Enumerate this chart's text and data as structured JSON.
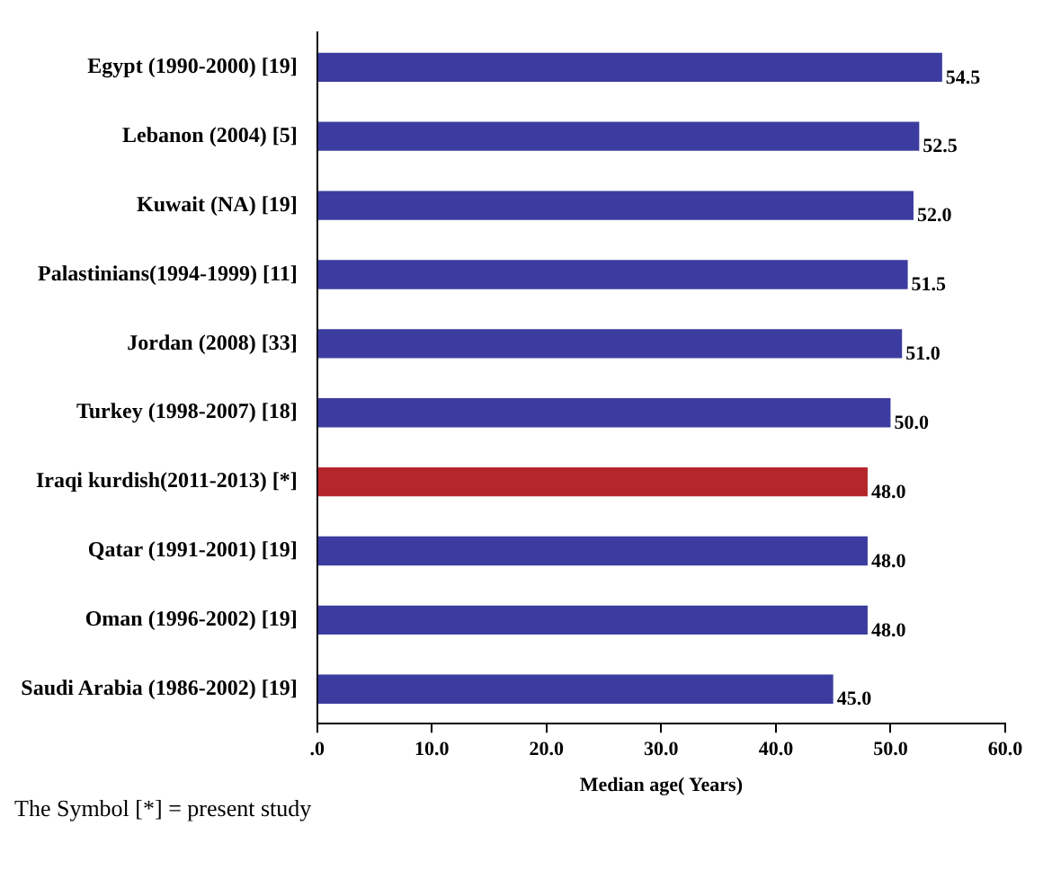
{
  "chart_data": {
    "type": "bar",
    "orientation": "horizontal",
    "xlabel": "Median age( Years)",
    "categories": [
      "Egypt (1990-2000) [19]",
      "Lebanon (2004) [5]",
      "Kuwait (NA) [19]",
      "Palastinians(1994-1999) [11]",
      "Jordan (2008) [33]",
      "Turkey (1998-2007) [18]",
      "Iraqi kurdish(2011-2013) [*]",
      "Qatar (1991-2001) [19]",
      "Oman (1996-2002) [19]",
      "Saudi Arabia (1986-2002) [19]"
    ],
    "values": [
      54.5,
      52.5,
      52.0,
      51.5,
      51.0,
      50.0,
      48.0,
      48.0,
      48.0,
      45.0
    ],
    "value_labels": [
      "54.5",
      "52.5",
      "52.0",
      "51.5",
      "51.0",
      "50.0",
      "48.0",
      "48.0",
      "48.0",
      "45.0"
    ],
    "colors": [
      "#3c3ca0",
      "#3c3ca0",
      "#3c3ca0",
      "#3c3ca0",
      "#3c3ca0",
      "#3c3ca0",
      "#b5262c",
      "#3c3ca0",
      "#3c3ca0",
      "#3c3ca0"
    ],
    "xlim": [
      0,
      60
    ],
    "xticks": [
      {
        "value": 0,
        "label": ".0"
      },
      {
        "value": 10,
        "label": "10.0"
      },
      {
        "value": 20,
        "label": "20.0"
      },
      {
        "value": 30,
        "label": "30.0"
      },
      {
        "value": 40,
        "label": "40.0"
      },
      {
        "value": 50,
        "label": "50.0"
      },
      {
        "value": 60,
        "label": "60.0"
      }
    ],
    "grid": false,
    "legend": false,
    "annotations": [
      "The Symbol [*] = present study"
    ]
  }
}
